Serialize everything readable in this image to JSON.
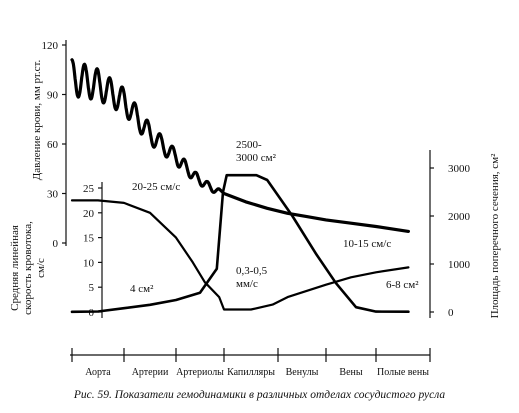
{
  "caption": "Рис. 59. Показатели гемодинамики в различных отделах сосудистого русла",
  "chart_data": {
    "type": "line",
    "segments": [
      "Аорта",
      "Артерии",
      "Артериолы",
      "Капилляры",
      "Венулы",
      "Вены",
      "Полые вены"
    ],
    "axes": {
      "pressure": {
        "label": "Давление крови, мм рт.ст.",
        "ticks": [
          "120",
          "90",
          "60",
          "30",
          "0"
        ],
        "range": [
          0,
          120
        ]
      },
      "velocity": {
        "label_lines": [
          "Средняя линейная",
          "скорость кровотока,",
          "см/с"
        ],
        "ticks": [
          "25",
          "20",
          "15",
          "10",
          "5",
          "0"
        ],
        "range": [
          0,
          25
        ]
      },
      "area": {
        "label": "Площадь поперечного сечения, см²",
        "ticks": [
          "3000",
          "2000",
          "1000",
          "0"
        ],
        "range": [
          0,
          3000
        ]
      }
    },
    "series": [
      {
        "axis": "pressure",
        "points": [
          {
            "x": 0.0,
            "y": 100
          },
          {
            "x": 0.5,
            "y": 96
          },
          {
            "x": 1.0,
            "y": 86
          },
          {
            "x": 1.5,
            "y": 66
          },
          {
            "x": 2.0,
            "y": 52
          },
          {
            "x": 2.4,
            "y": 40
          },
          {
            "x": 2.75,
            "y": 33
          },
          {
            "x": 3.0,
            "y": 30
          },
          {
            "x": 3.4,
            "y": 25
          },
          {
            "x": 3.8,
            "y": 21
          },
          {
            "x": 4.2,
            "y": 18
          },
          {
            "x": 4.6,
            "y": 16
          },
          {
            "x": 5.0,
            "y": 14
          },
          {
            "x": 5.5,
            "y": 12
          },
          {
            "x": 6.0,
            "y": 10
          },
          {
            "x": 6.6,
            "y": 7
          }
        ],
        "oscillation": {
          "from_x": 0.0,
          "to_x": 2.9,
          "amplitude_start": 11,
          "amplitude_end": 1.5,
          "cycles": 12
        }
      },
      {
        "axis": "velocity",
        "points": [
          {
            "x": 0.0,
            "y": 22.5
          },
          {
            "x": 0.5,
            "y": 22.5
          },
          {
            "x": 1.0,
            "y": 22
          },
          {
            "x": 1.5,
            "y": 20
          },
          {
            "x": 2.0,
            "y": 15
          },
          {
            "x": 2.35,
            "y": 10
          },
          {
            "x": 2.6,
            "y": 6
          },
          {
            "x": 2.9,
            "y": 3
          },
          {
            "x": 3.0,
            "y": 0.5
          },
          {
            "x": 3.5,
            "y": 0.5
          },
          {
            "x": 3.9,
            "y": 1.5
          },
          {
            "x": 4.2,
            "y": 3
          },
          {
            "x": 5.0,
            "y": 5.5
          },
          {
            "x": 5.5,
            "y": 7
          },
          {
            "x": 6.0,
            "y": 8
          },
          {
            "x": 6.6,
            "y": 9
          }
        ]
      },
      {
        "axis": "area",
        "points": [
          {
            "x": 0.0,
            "y": 4
          },
          {
            "x": 0.5,
            "y": 10
          },
          {
            "x": 1.0,
            "y": 80
          },
          {
            "x": 1.5,
            "y": 150
          },
          {
            "x": 2.0,
            "y": 250
          },
          {
            "x": 2.5,
            "y": 400
          },
          {
            "x": 2.85,
            "y": 900
          },
          {
            "x": 2.98,
            "y": 2500
          },
          {
            "x": 3.05,
            "y": 2850
          },
          {
            "x": 3.6,
            "y": 2850
          },
          {
            "x": 3.8,
            "y": 2750
          },
          {
            "x": 4.3,
            "y": 2000
          },
          {
            "x": 4.8,
            "y": 1200
          },
          {
            "x": 5.2,
            "y": 600
          },
          {
            "x": 5.6,
            "y": 100
          },
          {
            "x": 6.0,
            "y": 8
          },
          {
            "x": 6.6,
            "y": 6
          }
        ]
      }
    ],
    "annotations": [
      {
        "text": "20-25 см/с"
      },
      {
        "lines": [
          "2500-",
          "3000 см²"
        ]
      },
      {
        "text": "4 см²"
      },
      {
        "lines": [
          "0,3-0,5",
          "мм/с"
        ]
      },
      {
        "text": "10-15 см/с"
      },
      {
        "text": "6-8 см²"
      }
    ]
  }
}
